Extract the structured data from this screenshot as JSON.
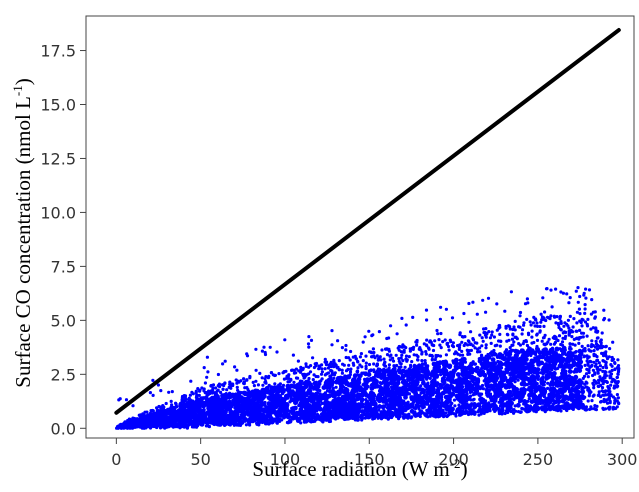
{
  "chart_data": {
    "type": "scatter",
    "xlabel": {
      "prefix": "Surface radiation (W m",
      "sup": "-2",
      "suffix": ")"
    },
    "ylabel": {
      "prefix": "Surface CO concentration (nmol L",
      "sup": "-1",
      "suffix": ")"
    },
    "xlim": [
      -18,
      307
    ],
    "ylim": [
      -0.45,
      19.1
    ],
    "x_ticks": [
      0,
      50,
      100,
      150,
      200,
      250,
      300
    ],
    "y_ticks": [
      0.0,
      2.5,
      5.0,
      7.5,
      10.0,
      12.5,
      15.0,
      17.5
    ],
    "x_tick_labels": [
      "0",
      "50",
      "100",
      "150",
      "200",
      "250",
      "300"
    ],
    "y_tick_labels": [
      "0.0",
      "2.5",
      "5.0",
      "7.5",
      "10.0",
      "12.5",
      "15.0",
      "17.5"
    ],
    "grid": false,
    "legend": "none",
    "series": [
      {
        "kind": "line",
        "color": "#000000",
        "x": [
          0,
          298
        ],
        "y": [
          0.72,
          18.45
        ]
      },
      {
        "kind": "scatter",
        "color": "#0000ff",
        "description_points": [
          [
            0,
            0.05
          ],
          [
            10,
            0.5
          ],
          [
            20,
            0.9
          ],
          [
            30,
            1.3
          ],
          [
            50,
            1.9
          ],
          [
            75,
            2.5
          ],
          [
            100,
            3.0
          ],
          [
            125,
            3.5
          ],
          [
            150,
            4.2
          ],
          [
            175,
            5.0
          ],
          [
            200,
            5.4
          ],
          [
            225,
            5.8
          ],
          [
            240,
            6.8
          ],
          [
            255,
            6.5
          ],
          [
            270,
            6.7
          ],
          [
            285,
            5.1
          ],
          [
            295,
            3.4
          ],
          [
            50,
            0.1
          ],
          [
            100,
            0.2
          ],
          [
            150,
            0.35
          ],
          [
            200,
            0.5
          ],
          [
            250,
            0.8
          ],
          [
            275,
            1.1
          ]
        ]
      }
    ]
  }
}
